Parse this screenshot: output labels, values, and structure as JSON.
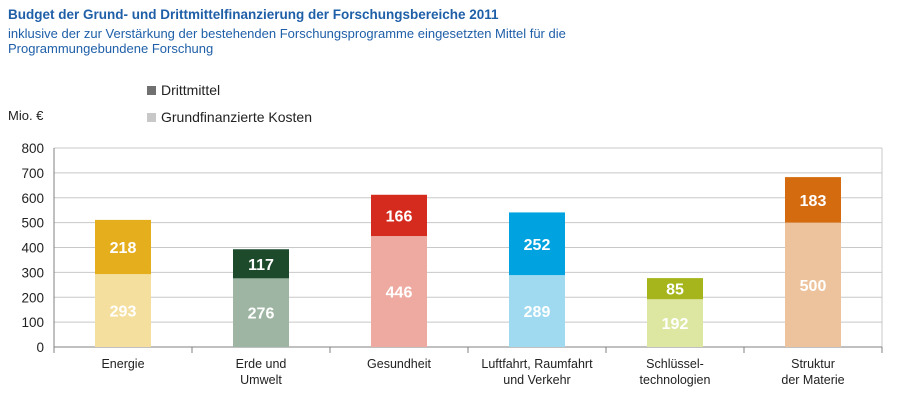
{
  "header": {
    "title": "Budget der Grund- und Drittmittelfinanzierung  der  Forschungsbereiche 2011",
    "subtitle": "inklusive  der zur Verstärkung  der bestehenden  Forschungsprogramme  eingesetzten  Mittel  für die Programmungebundene  Forschung"
  },
  "legend": {
    "drittmittel": "Drittmittel",
    "grund": "Grundfinanzierte Kosten",
    "drittmittel_color": "#707070",
    "grund_color": "#c8c8c8"
  },
  "chart_data": {
    "type": "bar",
    "stacked": true,
    "title": "Budget der Grund- und Drittmittelfinanzierung  der  Forschungsbereiche 2011",
    "ylabel": "Mio.  €",
    "xlabel": "",
    "ylim": [
      0,
      800
    ],
    "yticks": [
      0,
      100,
      200,
      300,
      400,
      500,
      600,
      700,
      800
    ],
    "grid": true,
    "legend_position": "top-left",
    "categories": [
      [
        "Energie"
      ],
      [
        "Erde und",
        "Umwelt"
      ],
      [
        "Gesundheit"
      ],
      [
        "Luftfahrt, Raumfahrt",
        "und Verkehr"
      ],
      [
        "Schlüssel-",
        "technologien"
      ],
      [
        "Struktur",
        "der Materie"
      ]
    ],
    "series": [
      {
        "name": "Grundfinanzierte Kosten",
        "values": [
          293,
          276,
          446,
          289,
          192,
          500
        ],
        "colors": [
          "#f4df9e",
          "#9db5a2",
          "#eeaaa0",
          "#9fdaf1",
          "#dde7a2",
          "#ecc39c"
        ]
      },
      {
        "name": "Drittmittel",
        "values": [
          218,
          117,
          166,
          252,
          85,
          183
        ],
        "colors": [
          "#e5ae1c",
          "#1c4a2b",
          "#d52b1e",
          "#00a2df",
          "#a5b51b",
          "#d46b0f"
        ]
      }
    ]
  }
}
